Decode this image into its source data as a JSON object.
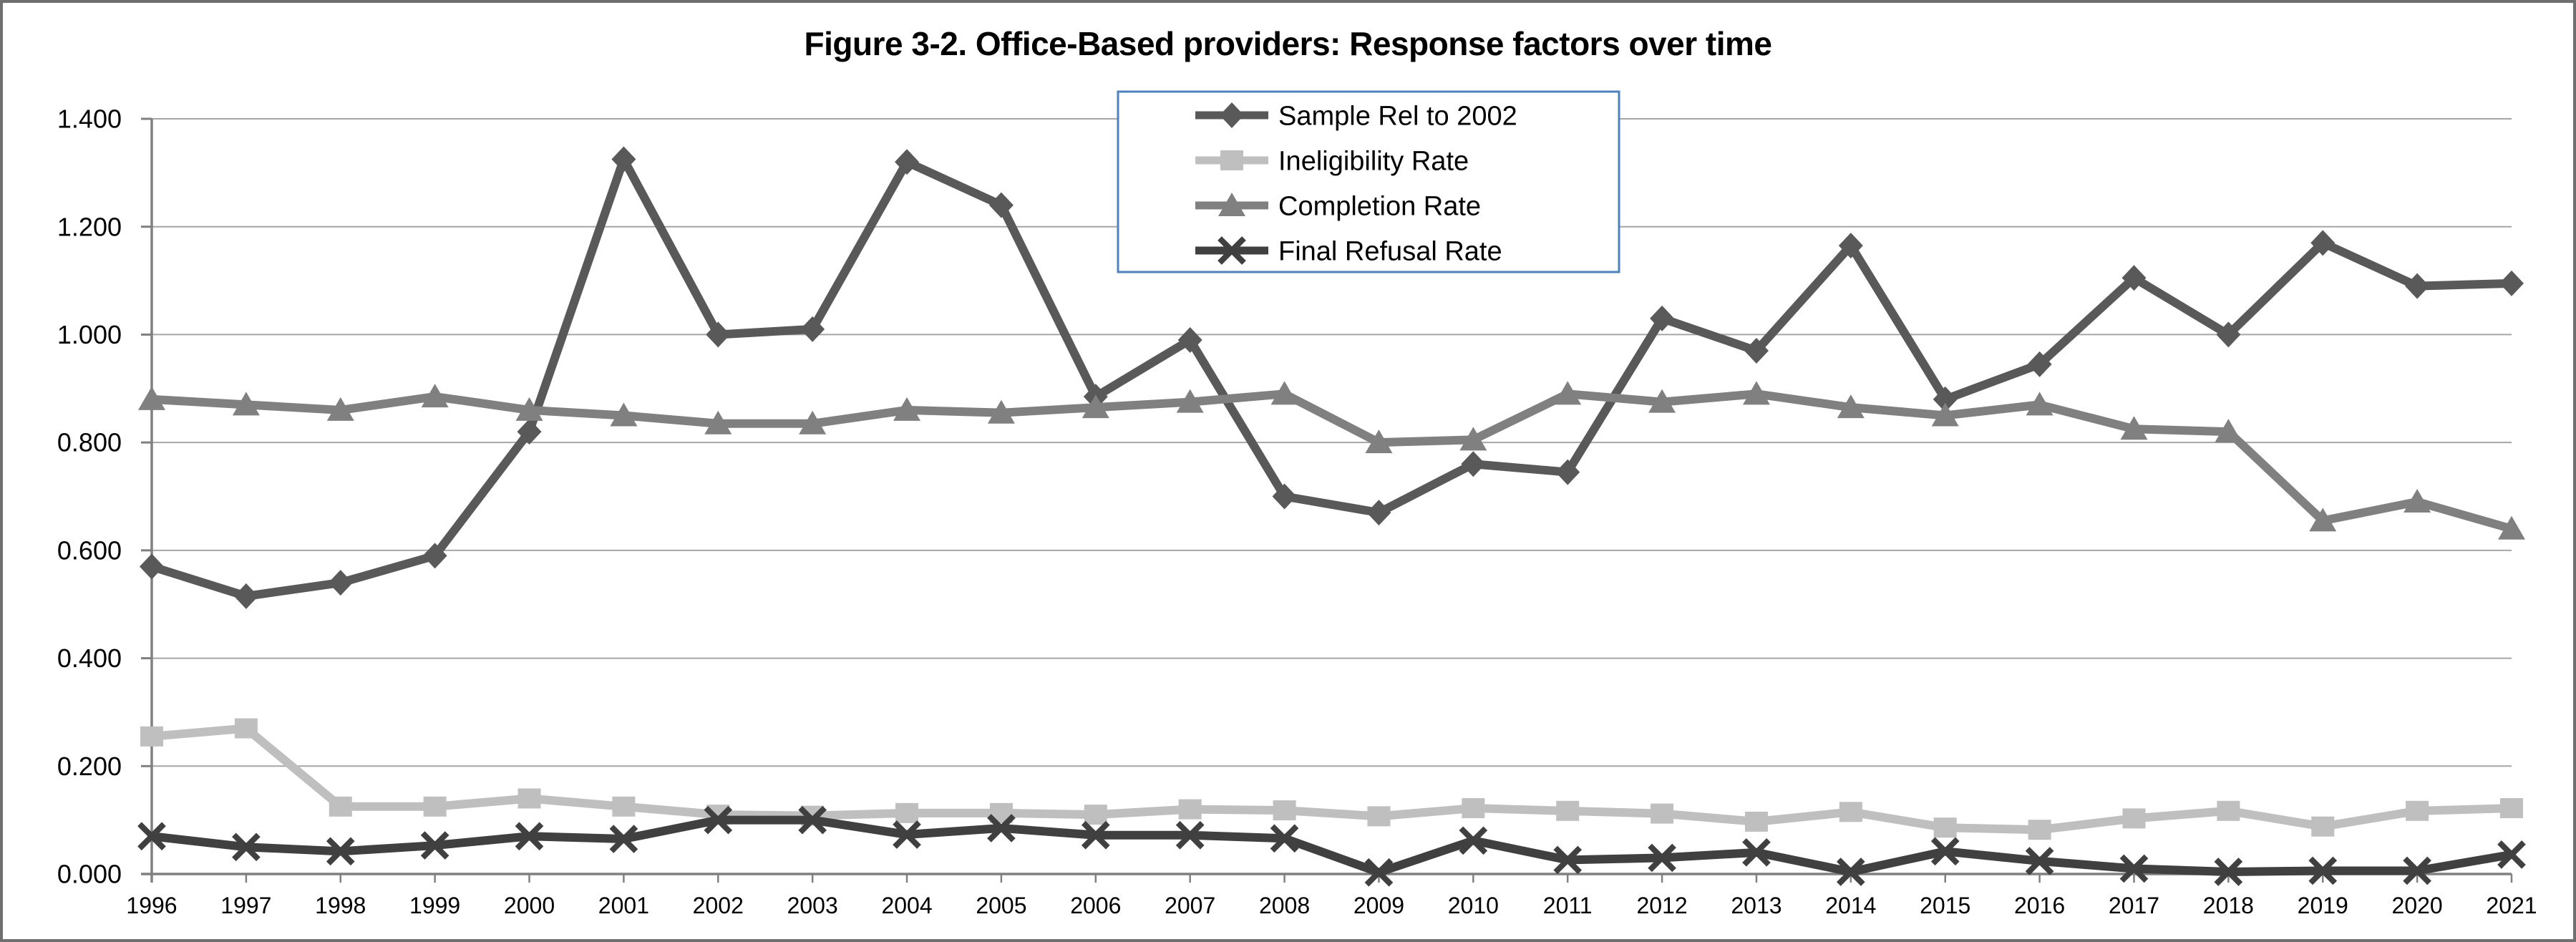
{
  "chart_data": {
    "type": "line",
    "title": "Figure 3-2. Office-Based providers: Response factors over time",
    "categories": [
      "1996",
      "1997",
      "1998",
      "1999",
      "2000",
      "2001",
      "2002",
      "2003",
      "2004",
      "2005",
      "2006",
      "2007",
      "2008",
      "2009",
      "2010",
      "2011",
      "2012",
      "2013",
      "2014",
      "2015",
      "2016",
      "2017",
      "2018",
      "2019",
      "2020",
      "2021"
    ],
    "series": [
      {
        "name": "Sample Rel to 2002",
        "marker": "diamond",
        "color": "#595959",
        "values": [
          0.57,
          0.515,
          0.54,
          0.59,
          0.82,
          1.325,
          1.0,
          1.01,
          1.32,
          1.24,
          0.885,
          0.99,
          0.7,
          0.67,
          0.76,
          0.745,
          1.03,
          0.97,
          1.165,
          0.88,
          0.945,
          1.105,
          1.0,
          1.17,
          1.09,
          1.095
        ]
      },
      {
        "name": "Ineligibility Rate",
        "marker": "square",
        "color": "#bfbfbf",
        "values": [
          0.255,
          0.27,
          0.125,
          0.125,
          0.14,
          0.125,
          0.11,
          0.108,
          0.113,
          0.113,
          0.11,
          0.12,
          0.118,
          0.107,
          0.122,
          0.117,
          0.112,
          0.097,
          0.115,
          0.086,
          0.082,
          0.103,
          0.117,
          0.088,
          0.117,
          0.122
        ]
      },
      {
        "name": "Completion Rate",
        "marker": "triangle",
        "color": "#808080",
        "values": [
          0.88,
          0.87,
          0.86,
          0.885,
          0.86,
          0.85,
          0.835,
          0.835,
          0.86,
          0.855,
          0.865,
          0.875,
          0.89,
          0.8,
          0.805,
          0.89,
          0.875,
          0.89,
          0.865,
          0.85,
          0.87,
          0.825,
          0.82,
          0.655,
          0.69,
          0.64
        ]
      },
      {
        "name": "Final Refusal Rate",
        "marker": "x",
        "color": "#404040",
        "values": [
          0.07,
          0.05,
          0.042,
          0.053,
          0.07,
          0.065,
          0.1,
          0.1,
          0.073,
          0.085,
          0.072,
          0.072,
          0.066,
          0.003,
          0.062,
          0.026,
          0.03,
          0.04,
          0.004,
          0.042,
          0.024,
          0.01,
          0.004,
          0.006,
          0.006,
          0.036
        ]
      }
    ],
    "y_axis": {
      "min": 0,
      "max": 1.4,
      "step": 0.2,
      "tick_labels": [
        "0.000",
        "0.200",
        "0.400",
        "0.600",
        "0.800",
        "1.000",
        "1.200",
        "1.400"
      ]
    },
    "grid": true,
    "legend_position": "top-center",
    "colors": {
      "gridline": "#a6a6a6",
      "axis": "#808080",
      "legend_border": "#4f81bd",
      "legend_background": "#ffffff",
      "frame_border": "#6f6f6f",
      "text": "#000000",
      "background": "#ffffff"
    }
  }
}
